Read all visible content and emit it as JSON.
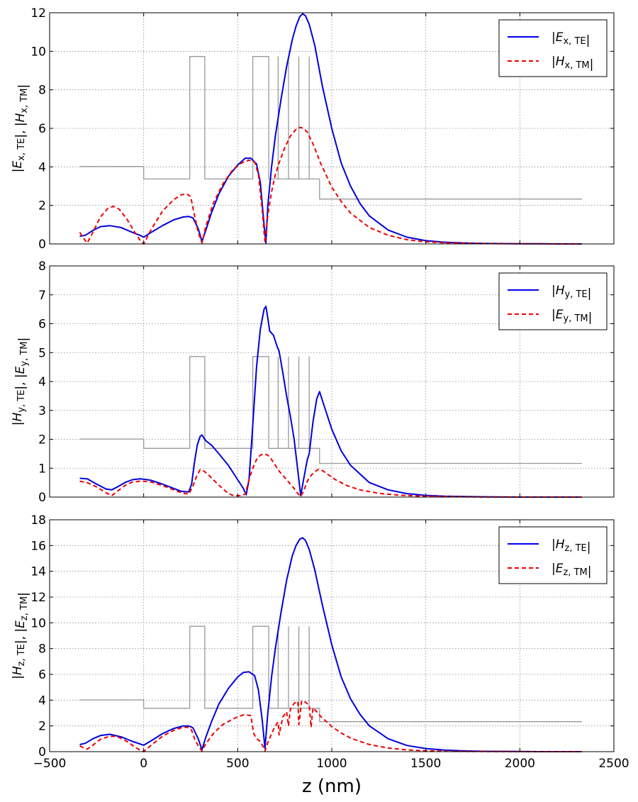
{
  "chart_data": {
    "type": "line",
    "xlabel": "z (nm)",
    "xlim": [
      -500,
      2500
    ],
    "xticks": [
      "−500",
      "0",
      "500",
      "1000",
      "1500",
      "2000",
      "2500"
    ],
    "xtick_values": [
      -500,
      0,
      500,
      1000,
      1500,
      2000,
      2500
    ],
    "subplots": [
      {
        "ylabel": "|Ex, TE|, |Hx, TM|",
        "ylabel_parts": {
          "a": "E",
          "a_sub": "x, TE",
          "b": "H",
          "b_sub": "x, TM"
        },
        "ylim": [
          0,
          12
        ],
        "yticks": [
          0,
          2,
          4,
          6,
          8,
          10,
          12
        ],
        "legend": [
          {
            "sym": "E",
            "sub": "x, TE",
            "color": "#0000ee",
            "style": "solid"
          },
          {
            "sym": "H",
            "sub": "x, TM",
            "color": "#ee0000",
            "style": "dashed"
          }
        ],
        "profile_scale": 1.0,
        "series": [
          {
            "name": "|Ex,TE|",
            "color": "#0000dd",
            "style": "solid",
            "x": [
              -340,
              -310,
              -270,
              -230,
              -180,
              -120,
              -60,
              -20,
              0,
              40,
              100,
              160,
              210,
              240,
              262,
              290,
              310,
              330,
              360,
              400,
              450,
              500,
              540,
              570,
              600,
              620,
              640,
              650,
              660,
              680,
              700,
              730,
              760,
              790,
              810,
              830,
              845,
              860,
              880,
              910,
              950,
              1000,
              1050,
              1100,
              1150,
              1200,
              1300,
              1400,
              1500,
              1600,
              1700,
              1800,
              1900,
              2000,
              2100,
              2200,
              2330
            ],
            "y": [
              0.4,
              0.45,
              0.7,
              0.9,
              0.95,
              0.85,
              0.6,
              0.45,
              0.35,
              0.6,
              0.95,
              1.25,
              1.4,
              1.43,
              1.35,
              0.8,
              0.12,
              0.7,
              1.6,
              2.6,
              3.5,
              4.1,
              4.45,
              4.45,
              4.15,
              3.2,
              1.0,
              0.05,
              2.0,
              4.0,
              5.6,
              7.5,
              9.2,
              10.6,
              11.3,
              11.8,
              11.95,
              11.85,
              11.4,
              10.3,
              8.2,
              6.0,
              4.2,
              3.0,
              2.1,
              1.45,
              0.72,
              0.35,
              0.17,
              0.09,
              0.05,
              0.03,
              0.02,
              0.01,
              0.01,
              0.0,
              0.0
            ]
          },
          {
            "name": "|Hx,TM|",
            "color": "#ee0000",
            "style": "dashed",
            "x": [
              -340,
              -320,
              -300,
              -270,
              -230,
              -190,
              -160,
              -130,
              -90,
              -50,
              -20,
              0,
              40,
              100,
              160,
              200,
              230,
              250,
              270,
              290,
              310,
              330,
              370,
              420,
              470,
              520,
              560,
              590,
              610,
              630,
              645,
              660,
              680,
              700,
              720,
              750,
              780,
              810,
              830,
              850,
              870,
              900,
              940,
              1000,
              1050,
              1100,
              1200,
              1300,
              1400,
              1500,
              1600,
              1800,
              2000,
              2330
            ],
            "y": [
              0.6,
              0.3,
              0.05,
              0.6,
              1.4,
              1.85,
              1.95,
              1.8,
              1.3,
              0.65,
              0.2,
              0.0,
              0.75,
              1.7,
              2.3,
              2.55,
              2.6,
              2.45,
              1.5,
              0.6,
              0.05,
              0.9,
              2.1,
              3.1,
              3.8,
              4.2,
              4.35,
              4.25,
              3.6,
              1.8,
              0.05,
              1.5,
              2.7,
              3.6,
              4.2,
              5.0,
              5.6,
              5.95,
              6.05,
              6.0,
              5.8,
              5.2,
              4.2,
              2.95,
              2.2,
              1.6,
              0.85,
              0.45,
              0.22,
              0.11,
              0.06,
              0.02,
              0.01,
              0.0
            ]
          }
        ]
      },
      {
        "ylabel": "|Hy, TE|, |Ey, TM|",
        "ylabel_parts": {
          "a": "H",
          "a_sub": "y, TE",
          "b": "E",
          "b_sub": "y, TM"
        },
        "ylim": [
          0,
          8
        ],
        "yticks": [
          0,
          1,
          2,
          3,
          4,
          5,
          6,
          7,
          8
        ],
        "legend": [
          {
            "sym": "H",
            "sub": "y, TE",
            "color": "#0000ee",
            "style": "solid"
          },
          {
            "sym": "E",
            "sub": "y, TM",
            "color": "#ee0000",
            "style": "dashed"
          }
        ],
        "profile_scale": 0.5,
        "series": [
          {
            "name": "|Hy,TE|",
            "color": "#0000dd",
            "style": "solid",
            "x": [
              -340,
              -300,
              -250,
              -200,
              -170,
              -140,
              -100,
              -60,
              -20,
              0,
              40,
              100,
              160,
              200,
              240,
              255,
              270,
              285,
              300,
              310,
              330,
              360,
              400,
              450,
              500,
              530,
              545,
              560,
              580,
              600,
              620,
              640,
              650,
              660,
              670,
              690,
              710,
              720,
              740,
              760,
              780,
              800,
              820,
              835,
              850,
              870,
              880,
              900,
              920,
              935,
              950,
              980,
              1000,
              1050,
              1100,
              1200,
              1300,
              1400,
              1500,
              1600,
              1800,
              2000,
              2330
            ],
            "y": [
              0.65,
              0.63,
              0.45,
              0.28,
              0.25,
              0.35,
              0.5,
              0.6,
              0.63,
              0.62,
              0.58,
              0.45,
              0.3,
              0.2,
              0.18,
              0.45,
              1.2,
              1.8,
              2.1,
              2.15,
              1.95,
              1.8,
              1.5,
              1.1,
              0.6,
              0.3,
              0.08,
              0.6,
              2.5,
              4.5,
              5.8,
              6.5,
              6.6,
              6.2,
              5.75,
              5.6,
              5.2,
              5.05,
              4.3,
              3.5,
              2.8,
              2.0,
              0.9,
              0.05,
              0.6,
              1.3,
              1.5,
              2.6,
              3.4,
              3.65,
              3.35,
              2.75,
              2.35,
              1.6,
              1.1,
              0.5,
              0.25,
              0.12,
              0.06,
              0.03,
              0.01,
              0.0,
              0.0
            ]
          },
          {
            "name": "|Ey,TM|",
            "color": "#ee0000",
            "style": "dashed",
            "x": [
              -340,
              -300,
              -250,
              -200,
              -170,
              -140,
              -100,
              -60,
              -20,
              0,
              40,
              100,
              160,
              200,
              240,
              260,
              280,
              300,
              320,
              340,
              370,
              410,
              450,
              480,
              510,
              540,
              560,
              580,
              600,
              620,
              640,
              660,
              680,
              700,
              720,
              740,
              760,
              780,
              800,
              820,
              835,
              850,
              870,
              890,
              910,
              930,
              950,
              980,
              1020,
              1080,
              1150,
              1250,
              1350,
              1450,
              1600,
              1800,
              2330
            ],
            "y": [
              0.55,
              0.5,
              0.35,
              0.15,
              0.05,
              0.2,
              0.4,
              0.52,
              0.55,
              0.55,
              0.52,
              0.4,
              0.25,
              0.15,
              0.1,
              0.35,
              0.7,
              0.95,
              0.9,
              0.8,
              0.6,
              0.35,
              0.12,
              0.05,
              0.05,
              0.1,
              0.6,
              1.0,
              1.3,
              1.45,
              1.5,
              1.45,
              1.3,
              1.1,
              0.9,
              0.75,
              0.6,
              0.45,
              0.3,
              0.12,
              0.02,
              0.2,
              0.55,
              0.75,
              0.88,
              0.96,
              0.92,
              0.78,
              0.6,
              0.4,
              0.25,
              0.13,
              0.07,
              0.04,
              0.02,
              0.0,
              0.0
            ]
          }
        ]
      },
      {
        "ylabel": "|Hz, TE|, |Ez, TM|",
        "ylabel_parts": {
          "a": "H",
          "a_sub": "z, TE",
          "b": "E",
          "b_sub": "z, TM"
        },
        "ylim": [
          0,
          18
        ],
        "yticks": [
          0,
          2,
          4,
          6,
          8,
          10,
          12,
          14,
          16,
          18
        ],
        "legend": [
          {
            "sym": "H",
            "sub": "z, TE",
            "color": "#0000ee",
            "style": "solid"
          },
          {
            "sym": "E",
            "sub": "z, TM",
            "color": "#ee0000",
            "style": "dashed"
          }
        ],
        "profile_scale": 1.0,
        "series": [
          {
            "name": "|Hz,TE|",
            "color": "#0000dd",
            "style": "solid",
            "x": [
              -340,
              -310,
              -270,
              -230,
              -180,
              -120,
              -60,
              -20,
              0,
              40,
              100,
              160,
              210,
              240,
              262,
              290,
              310,
              330,
              360,
              400,
              450,
              500,
              530,
              560,
              590,
              610,
              630,
              645,
              660,
              680,
              700,
              730,
              760,
              790,
              810,
              830,
              845,
              860,
              880,
              910,
              950,
              1000,
              1050,
              1100,
              1150,
              1200,
              1300,
              1400,
              1500,
              1600,
              1700,
              1800,
              1900,
              2000,
              2100,
              2200,
              2330
            ],
            "y": [
              0.55,
              0.65,
              1.0,
              1.25,
              1.35,
              1.15,
              0.8,
              0.6,
              0.5,
              0.85,
              1.4,
              1.8,
              2.0,
              2.0,
              1.85,
              1.0,
              0.15,
              1.1,
              2.3,
              3.7,
              4.9,
              5.8,
              6.15,
              6.2,
              5.9,
              4.8,
              2.5,
              0.25,
              3.0,
              5.8,
              8.0,
              10.8,
              13.3,
              15.2,
              16.0,
              16.5,
              16.6,
              16.4,
              15.7,
              14.1,
              11.4,
              8.3,
              5.8,
              4.1,
              2.9,
              2.0,
              1.0,
              0.48,
              0.24,
              0.12,
              0.06,
              0.03,
              0.02,
              0.01,
              0.0,
              0.0,
              0.0
            ]
          },
          {
            "name": "|Ez,TM|",
            "color": "#ee0000",
            "style": "dashed",
            "x": [
              -340,
              -320,
              -300,
              -270,
              -230,
              -190,
              -160,
              -130,
              -90,
              -50,
              -20,
              0,
              40,
              100,
              160,
              200,
              230,
              250,
              262,
              270,
              290,
              310,
              330,
              370,
              420,
              470,
              500,
              530,
              550,
              570,
              585,
              600,
              620,
              640,
              645,
              660,
              680,
              700,
              715,
              720,
              740,
              760,
              770,
              780,
              800,
              820,
              825,
              840,
              860,
              880,
              890,
              900,
              920,
              940,
              1000,
              1050,
              1100,
              1200,
              1300,
              1400,
              1500,
              1600,
              1800,
              2000,
              2330
            ],
            "y": [
              0.45,
              0.3,
              0.2,
              0.5,
              0.95,
              1.15,
              1.2,
              1.1,
              0.8,
              0.4,
              0.12,
              0.0,
              0.5,
              1.2,
              1.65,
              1.85,
              1.9,
              1.8,
              1.4,
              1.0,
              0.45,
              0.05,
              0.6,
              1.4,
              2.1,
              2.5,
              2.7,
              2.85,
              2.85,
              2.8,
              1.4,
              1.0,
              0.8,
              0.25,
              0.05,
              0.7,
              1.4,
              2.0,
              2.3,
              1.3,
              2.7,
              3.1,
              2.0,
              3.3,
              3.75,
              3.9,
              2.1,
              3.95,
              3.85,
              3.6,
              1.9,
              3.4,
              3.1,
              2.75,
              1.95,
              1.45,
              1.05,
              0.55,
              0.28,
              0.14,
              0.07,
              0.03,
              0.01,
              0.0,
              0.0
            ]
          }
        ]
      }
    ],
    "index_profile": {
      "color": "#999999",
      "base_x": [
        -340,
        0,
        0,
        245,
        245,
        325,
        325,
        580,
        580,
        665,
        665,
        935,
        935,
        2330
      ],
      "base_y": [
        4.02,
        4.02,
        3.37,
        3.37,
        9.73,
        9.73,
        3.37,
        3.37,
        9.73,
        9.73,
        3.37,
        3.37,
        2.33,
        2.33
      ],
      "thin_layer_x": [
        715,
        770,
        825,
        880
      ],
      "thin_layer_top": 9.73,
      "thin_layer_bottom": 3.37
    }
  }
}
